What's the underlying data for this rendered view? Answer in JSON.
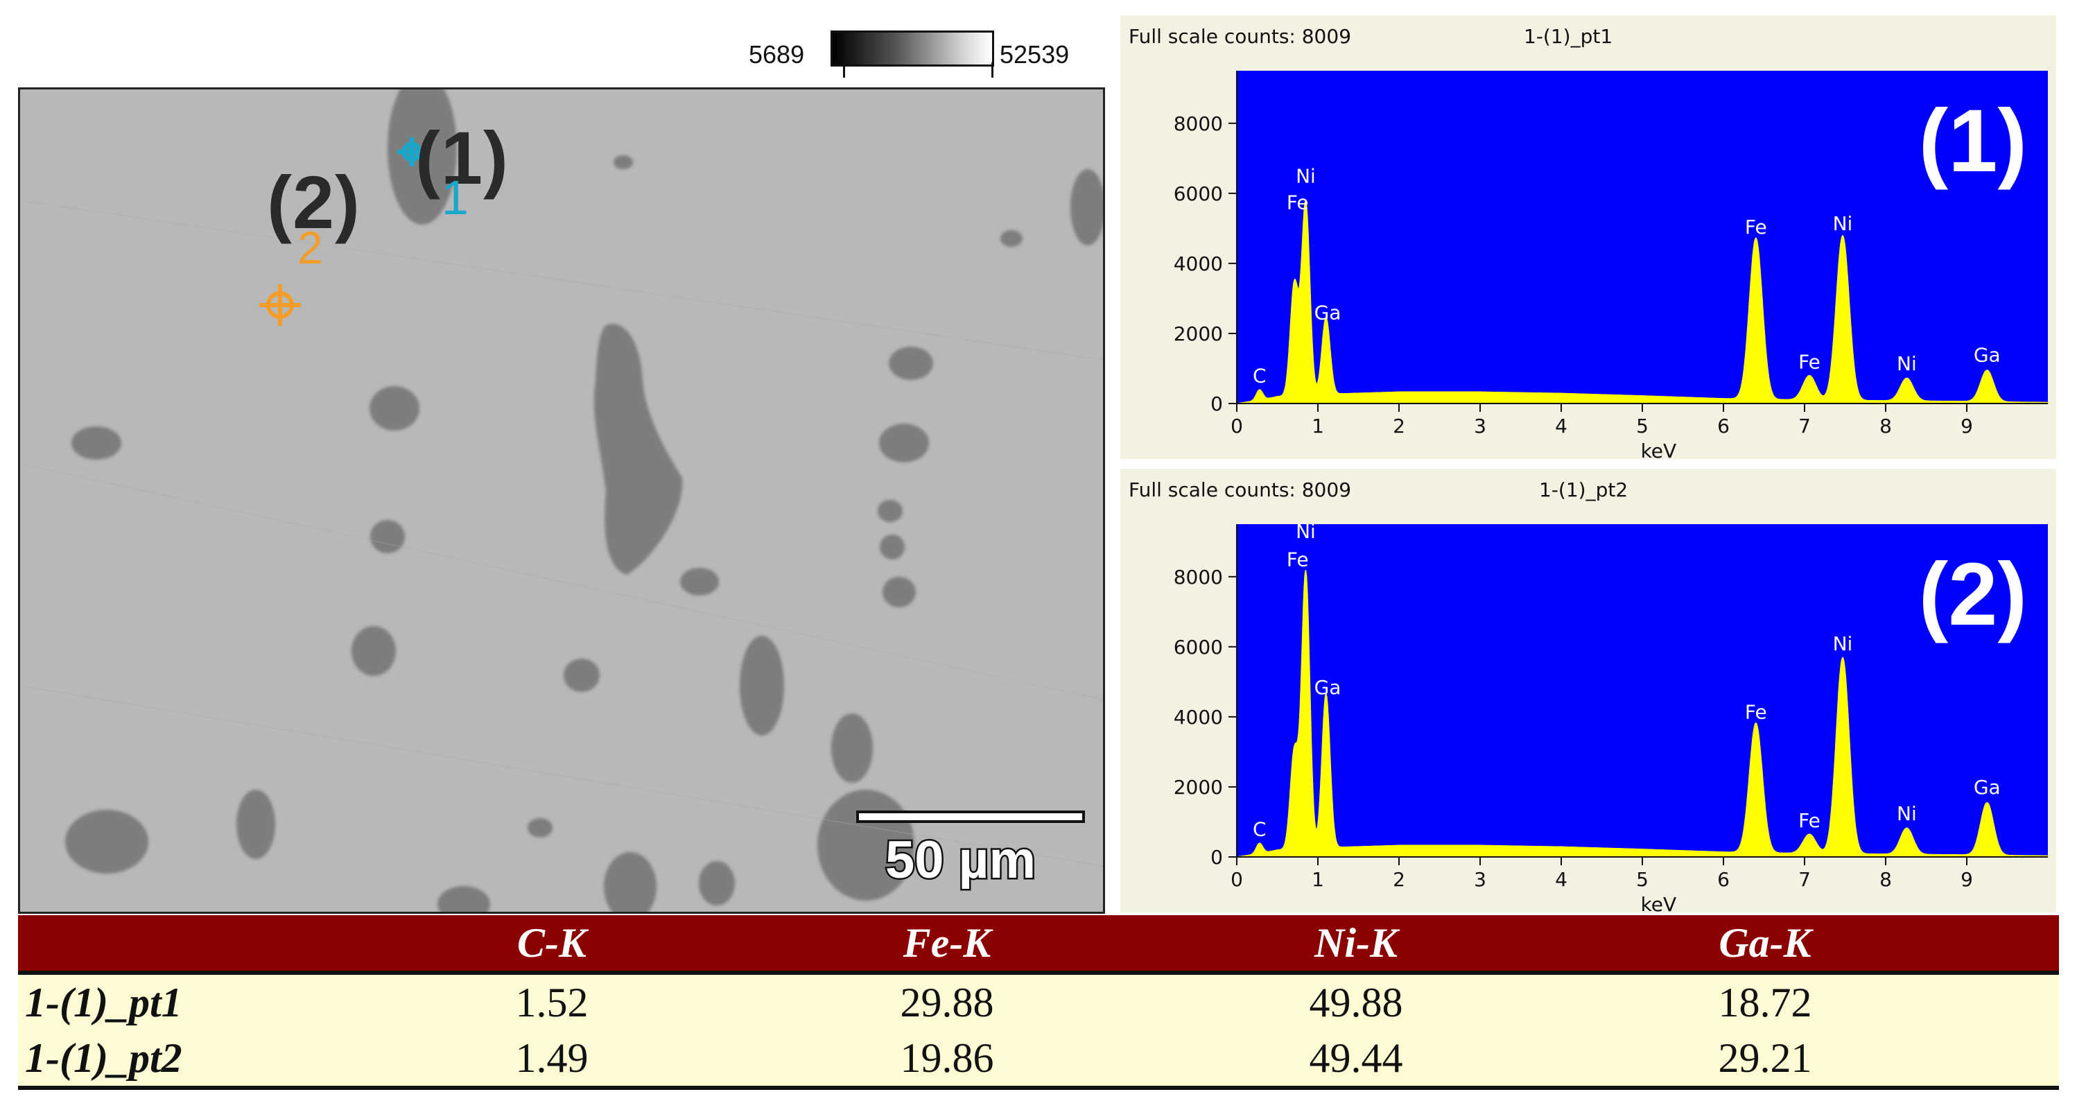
{
  "grayscale_bar": {
    "min_label": "5689",
    "max_label": "52539"
  },
  "micrograph": {
    "point1_label": "(1)",
    "point2_label": "(2)",
    "marker1_index": "1",
    "marker2_index": "2",
    "scale_bar_label": "50 µm",
    "marker1_color": "#1aa7c9",
    "marker2_color": "#f39c2a"
  },
  "chart_data": [
    {
      "type": "line",
      "header_counts": "Full scale counts: 8009",
      "header_name": "1-(1)_pt1",
      "panel_label": "(1)",
      "xlabel": "keV",
      "ylabel": "",
      "xlim": [
        0,
        10
      ],
      "ylim": [
        0,
        9500
      ],
      "xticks": [
        0,
        1,
        2,
        3,
        4,
        5,
        6,
        7,
        8,
        9
      ],
      "yticks": [
        0,
        2000,
        4000,
        6000,
        8000
      ],
      "background_color": "#0000ff",
      "series_color": "#ffff00",
      "baseline": [
        [
          0.0,
          0
        ],
        [
          0.3,
          100
        ],
        [
          0.5,
          200
        ],
        [
          1.3,
          280
        ],
        [
          2.0,
          330
        ],
        [
          3.0,
          330
        ],
        [
          4.0,
          290
        ],
        [
          5.0,
          220
        ],
        [
          6.0,
          140
        ],
        [
          7.0,
          100
        ],
        [
          8.0,
          80
        ],
        [
          9.0,
          60
        ],
        [
          9.6,
          40
        ],
        [
          10.0,
          30
        ]
      ],
      "peaks": [
        {
          "x": 0.28,
          "y": 300,
          "w": 0.04
        },
        {
          "x": 0.71,
          "y": 3200,
          "w": 0.05
        },
        {
          "x": 0.85,
          "y": 5500,
          "w": 0.05
        },
        {
          "x": 1.1,
          "y": 2200,
          "w": 0.05
        },
        {
          "x": 6.4,
          "y": 4600,
          "w": 0.08
        },
        {
          "x": 7.06,
          "y": 700,
          "w": 0.08
        },
        {
          "x": 7.47,
          "y": 4700,
          "w": 0.08
        },
        {
          "x": 8.26,
          "y": 650,
          "w": 0.08
        },
        {
          "x": 9.25,
          "y": 900,
          "w": 0.08
        }
      ],
      "annotations": [
        {
          "text": "C",
          "x": 0.28,
          "y": 600
        },
        {
          "text": "Ni",
          "x": 0.85,
          "y": 6300
        },
        {
          "text": "Fe",
          "x": 0.75,
          "y": 5550
        },
        {
          "text": "Ga",
          "x": 1.12,
          "y": 2400
        },
        {
          "text": "Fe",
          "x": 6.4,
          "y": 4850
        },
        {
          "text": "Fe",
          "x": 7.06,
          "y": 1000
        },
        {
          "text": "Ni",
          "x": 7.47,
          "y": 4950
        },
        {
          "text": "Ni",
          "x": 8.26,
          "y": 950
        },
        {
          "text": "Ga",
          "x": 9.25,
          "y": 1200
        }
      ]
    },
    {
      "type": "line",
      "header_counts": "Full scale counts: 8009",
      "header_name": "1-(1)_pt2",
      "panel_label": "(2)",
      "xlabel": "keV",
      "ylabel": "",
      "xlim": [
        0,
        10
      ],
      "ylim": [
        0,
        9500
      ],
      "xticks": [
        0,
        1,
        2,
        3,
        4,
        5,
        6,
        7,
        8,
        9
      ],
      "yticks": [
        0,
        2000,
        4000,
        6000,
        8000
      ],
      "background_color": "#0000ff",
      "series_color": "#ffff00",
      "baseline": [
        [
          0.0,
          0
        ],
        [
          0.3,
          100
        ],
        [
          0.5,
          200
        ],
        [
          1.3,
          280
        ],
        [
          2.0,
          330
        ],
        [
          3.0,
          330
        ],
        [
          4.0,
          290
        ],
        [
          5.0,
          220
        ],
        [
          6.0,
          140
        ],
        [
          7.0,
          100
        ],
        [
          8.0,
          80
        ],
        [
          9.0,
          60
        ],
        [
          9.6,
          40
        ],
        [
          10.0,
          30
        ]
      ],
      "peaks": [
        {
          "x": 0.28,
          "y": 300,
          "w": 0.04
        },
        {
          "x": 0.71,
          "y": 2800,
          "w": 0.05
        },
        {
          "x": 0.85,
          "y": 7900,
          "w": 0.05
        },
        {
          "x": 1.1,
          "y": 4400,
          "w": 0.05
        },
        {
          "x": 6.4,
          "y": 3700,
          "w": 0.08
        },
        {
          "x": 7.06,
          "y": 550,
          "w": 0.08
        },
        {
          "x": 7.47,
          "y": 5600,
          "w": 0.08
        },
        {
          "x": 8.26,
          "y": 750,
          "w": 0.08
        },
        {
          "x": 9.25,
          "y": 1500,
          "w": 0.08
        }
      ],
      "annotations": [
        {
          "text": "C",
          "x": 0.28,
          "y": 600
        },
        {
          "text": "Ni",
          "x": 0.85,
          "y": 9100
        },
        {
          "text": "Fe",
          "x": 0.75,
          "y": 8300
        },
        {
          "text": "Ga",
          "x": 1.12,
          "y": 4650
        },
        {
          "text": "Fe",
          "x": 6.4,
          "y": 3950
        },
        {
          "text": "Fe",
          "x": 7.06,
          "y": 850
        },
        {
          "text": "Ni",
          "x": 7.47,
          "y": 5900
        },
        {
          "text": "Ni",
          "x": 8.26,
          "y": 1050
        },
        {
          "text": "Ga",
          "x": 9.25,
          "y": 1800
        }
      ]
    },
    {
      "type": "table",
      "columns": [
        "",
        "C-K",
        "Fe-K",
        "Ni-K",
        "Ga-K"
      ],
      "rows": [
        [
          "1-(1)_pt1",
          "1.52",
          "29.88",
          "49.88",
          "18.72"
        ],
        [
          "1-(1)_pt2",
          "1.49",
          "19.86",
          "49.44",
          "29.21"
        ]
      ],
      "header_color": "#8b0000",
      "row_color": "#fdfbd4"
    }
  ]
}
